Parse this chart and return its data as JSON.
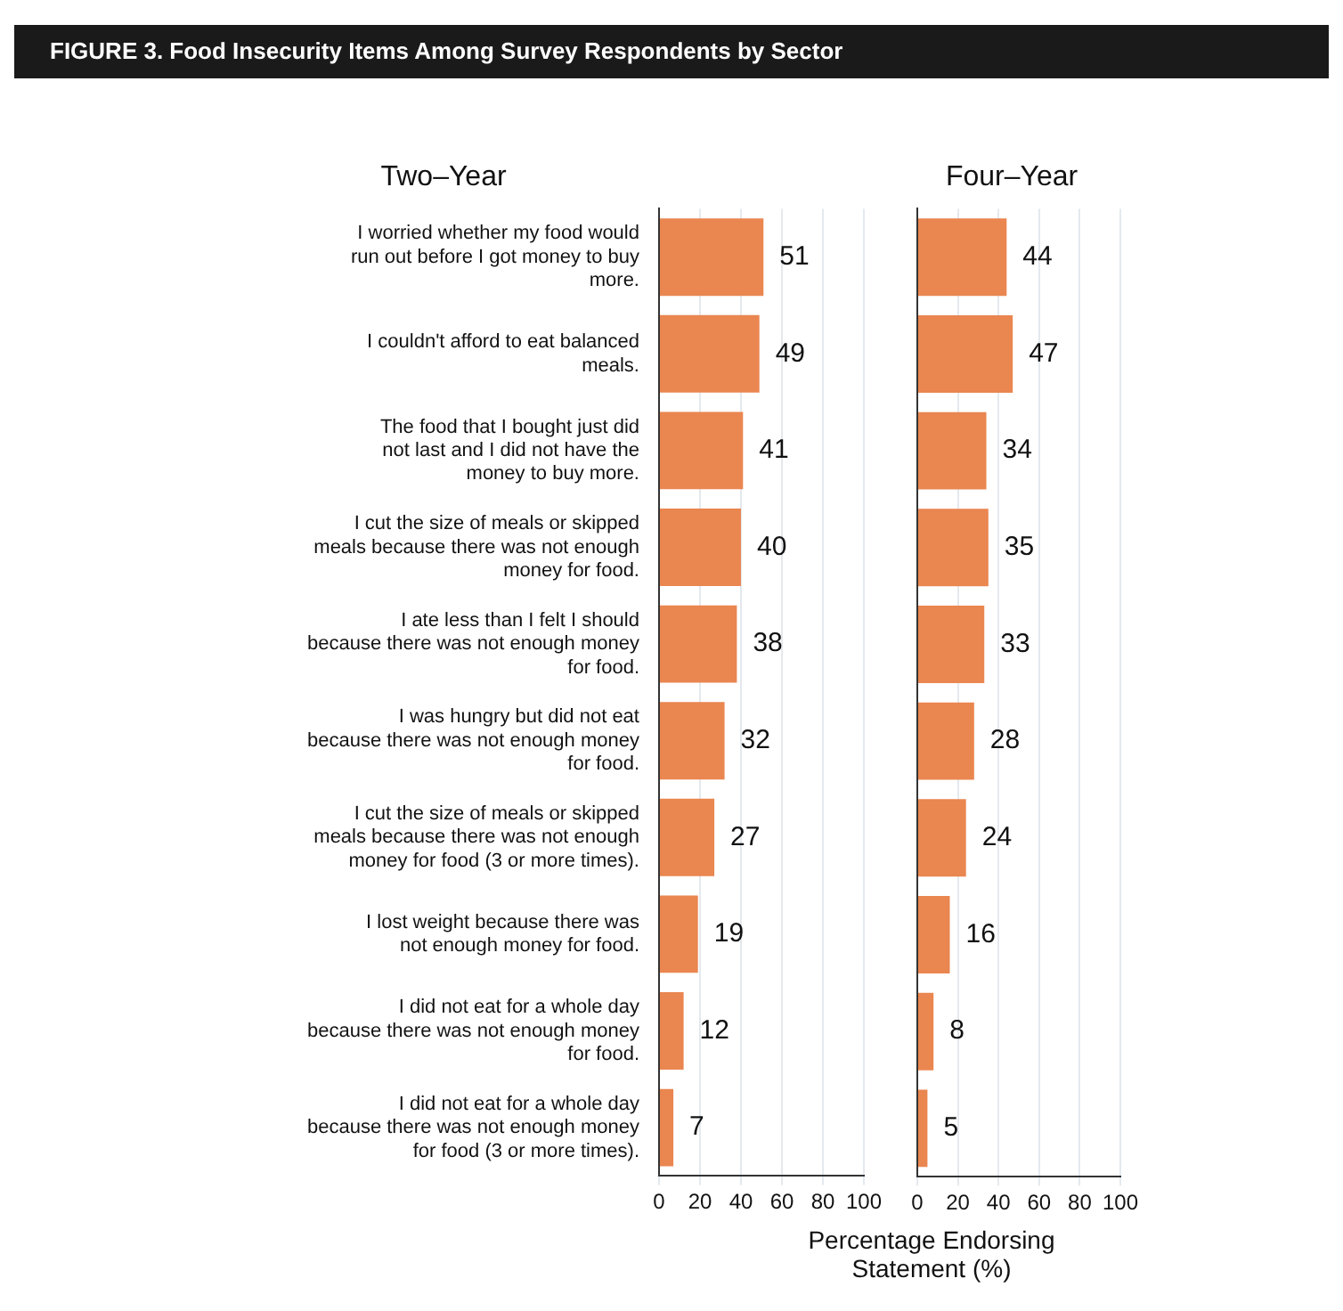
{
  "chart_data": [
    {
      "type": "bar",
      "orientation": "horizontal",
      "title": "Two–Year",
      "annotations": [
        "FIGURE 3. Food Insecurity Items Among Survey Respondents by Sector"
      ],
      "categories": [
        "I worried whether my food would run out before I got money to buy more.",
        "I couldn't afford to eat balanced meals.",
        "The food that I bought just did not last and I did not have the money to buy more.",
        "I cut the size of meals or skipped meals because there was not enough money for food.",
        "I ate less than I felt I should because there was not enough money for food.",
        "I was hungry but did not eat because there was not enough money for food.",
        "I cut the size of meals or skipped meals because there was not enough money for food (3 or more times).",
        "I lost weight because there was not enough money for food.",
        "I did not eat for a whole day because there was not enough money for food.",
        "I did not eat for a whole day because there was not enough money for food (3 or more times)."
      ],
      "values": [
        51,
        49,
        41,
        40,
        38,
        32,
        27,
        19,
        12,
        7
      ],
      "color": "#ea8650",
      "xlim": [
        0,
        100
      ],
      "xticks": [
        0,
        20,
        40,
        60,
        80,
        100
      ],
      "grid": "x",
      "data_labels": true
    },
    {
      "type": "bar",
      "orientation": "horizontal",
      "title": "Four–Year",
      "xlabel": "Percentage Endorsing Statement (%)",
      "tick_labels": "x",
      "categories": [
        null,
        null,
        null,
        null,
        null,
        null,
        null,
        null,
        null,
        null
      ],
      "values": [
        44,
        47,
        34,
        35,
        33,
        28,
        24,
        16,
        8,
        5
      ],
      "color": "#ea8650",
      "xlim": [
        0,
        100
      ],
      "xticks": [
        0,
        20,
        40,
        60,
        80,
        100
      ],
      "grid": "x",
      "data_labels": true
    }
  ]
}
